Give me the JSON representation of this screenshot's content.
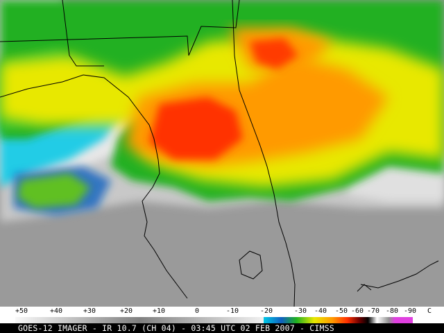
{
  "scale": {
    "labels": [
      "+50",
      "+40",
      "+30",
      "+20",
      "+10",
      "0",
      "-10",
      "-20",
      "-30",
      "-40",
      "-50",
      "-60",
      "-70",
      "-80",
      "-90"
    ],
    "unit": "C"
  },
  "caption": "GOES-12 IMAGER - IR 10.7 (CH 04) - 03:45 UTC 02 FEB 2007 - CIMSS",
  "colors": {
    "warm_gray": "#9a9a9a",
    "cold_white": "#f0f0f0",
    "cyan": "#00c8e6",
    "blue": "#1060c0",
    "green": "#20b020",
    "yellow": "#e8e800",
    "orange": "#ff9a00",
    "red": "#ff3000",
    "magenta": "#e040e0",
    "map_lines": "#000000"
  }
}
